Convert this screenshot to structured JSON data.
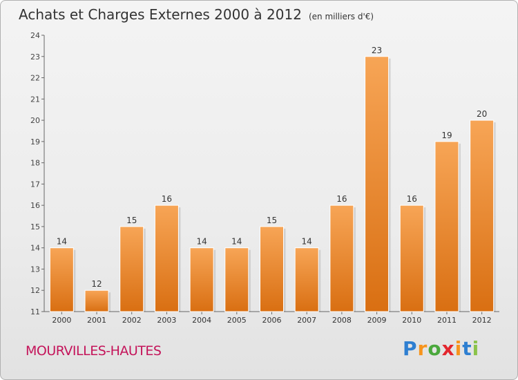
{
  "header": {
    "title": "Achats et Charges Externes 2000 à 2012",
    "subtitle": "(en milliers d'€)"
  },
  "footer": {
    "town": "MOURVILLES-HAUTES",
    "logo": {
      "letters": [
        "P",
        "r",
        "o",
        "x",
        "i",
        "t",
        "i"
      ],
      "colors": [
        "#2e7fd1",
        "#f7941d",
        "#4aa83c",
        "#e3262e",
        "#f7941d",
        "#2e7fd1",
        "#8bc34a"
      ]
    }
  },
  "chart_data": {
    "type": "bar",
    "categories": [
      "2000",
      "2001",
      "2002",
      "2003",
      "2004",
      "2005",
      "2006",
      "2007",
      "2008",
      "2009",
      "2010",
      "2011",
      "2012"
    ],
    "values": [
      14,
      12,
      15,
      16,
      14,
      14,
      15,
      14,
      16,
      23,
      16,
      19,
      20
    ],
    "data_labels": [
      "14",
      "12",
      "15",
      "16",
      "14",
      "14",
      "15",
      "14",
      "16",
      "23",
      "16",
      "19",
      "20"
    ],
    "ylim": [
      11,
      24
    ],
    "yticks": [
      "11",
      "12",
      "13",
      "14",
      "15",
      "16",
      "17",
      "18",
      "19",
      "20",
      "21",
      "22",
      "23",
      "24"
    ],
    "grid": false,
    "bar_color_top": "#f7a556",
    "bar_color_bottom": "#d96f12"
  }
}
